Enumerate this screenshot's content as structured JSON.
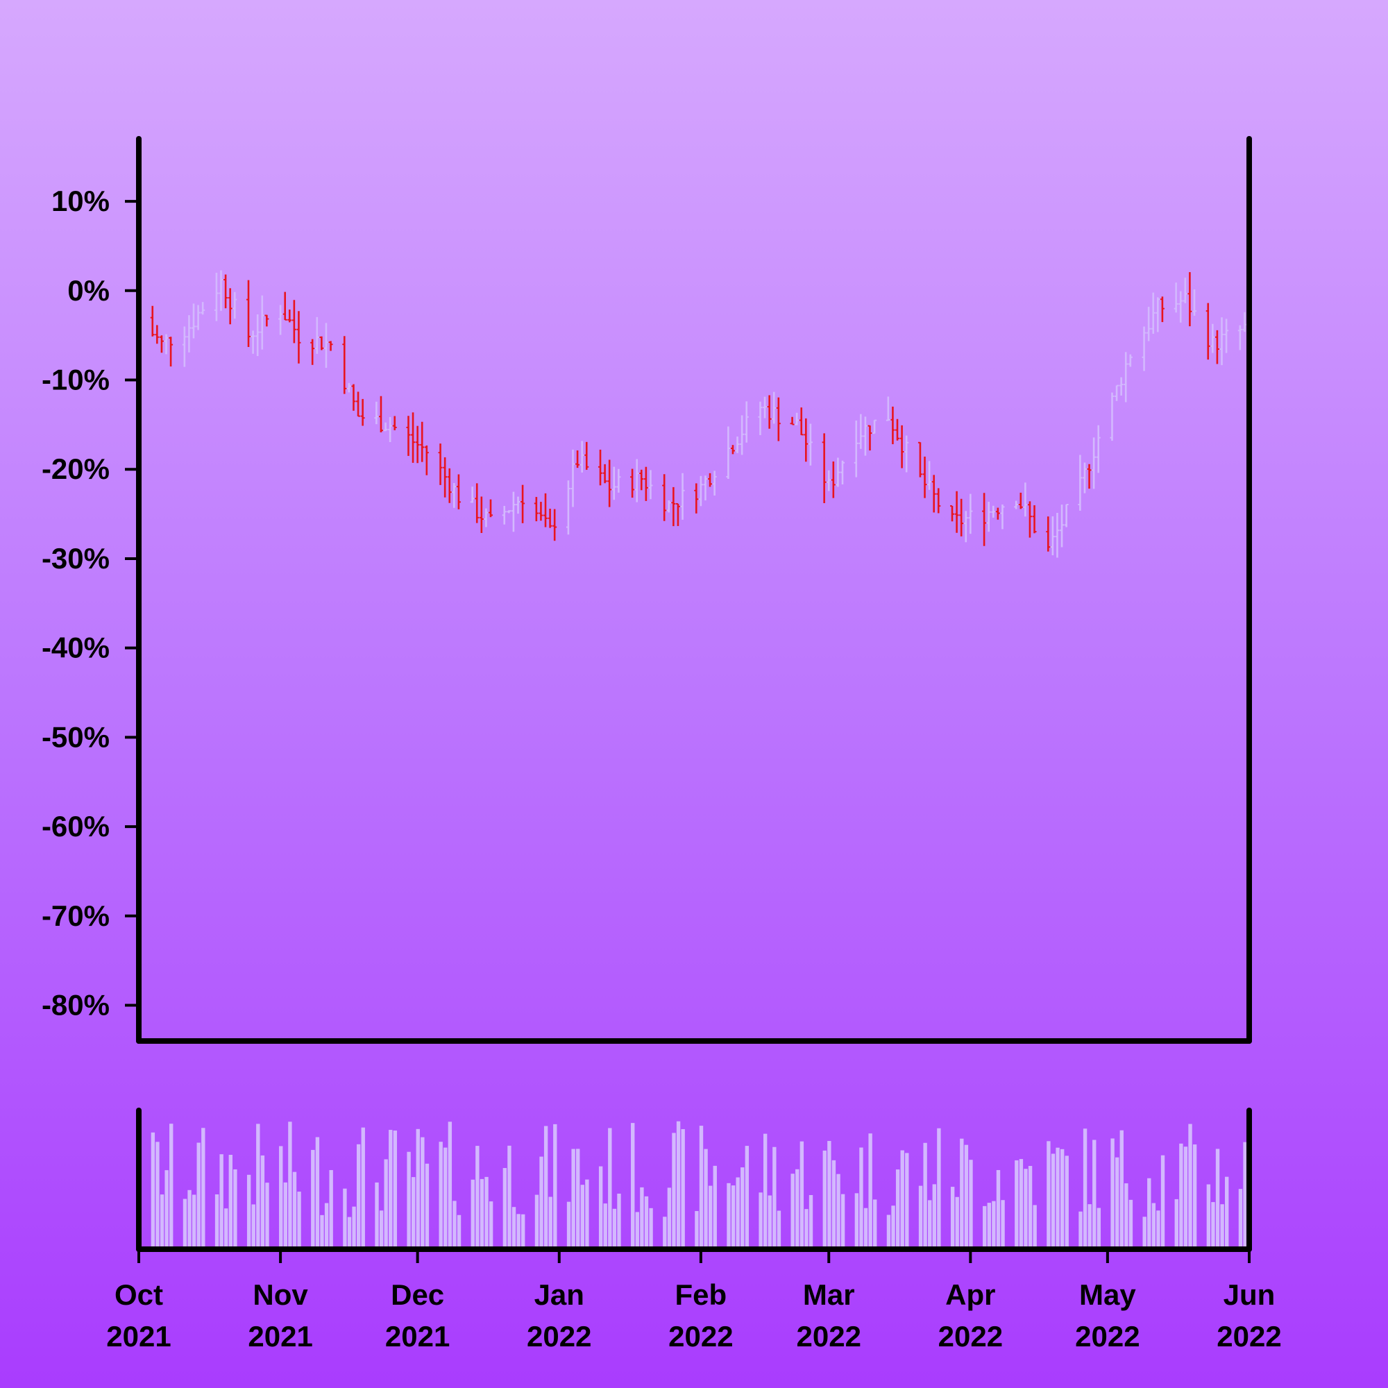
{
  "chart_data": [
    {
      "type": "ohlc",
      "title": "",
      "xlabel": "",
      "ylabel": "",
      "y_unit": "%",
      "ylim": [
        -84,
        17
      ],
      "yticks": [
        "10%",
        "0%",
        "-10%",
        "-20%",
        "-30%",
        "-40%",
        "-50%",
        "-60%",
        "-70%",
        "-80%"
      ],
      "ytick_values": [
        10,
        0,
        -10,
        -20,
        -30,
        -40,
        -50,
        -60,
        -70,
        -80
      ],
      "x_start": "2021-10-01",
      "x_end": "2022-06-01",
      "grid": false,
      "colors": {
        "up": "#d3b8fe",
        "down": "#e8141e",
        "volume": "#d3b8fe",
        "frame": "#000000"
      },
      "anchors": [
        [
          "2021-10-01",
          -3
        ],
        [
          "2021-10-06",
          -6
        ],
        [
          "2021-10-12",
          -4
        ],
        [
          "2021-10-19",
          1
        ],
        [
          "2021-10-25",
          -5
        ],
        [
          "2021-11-01",
          -2
        ],
        [
          "2021-11-05",
          -5
        ],
        [
          "2021-11-12",
          -6
        ],
        [
          "2021-11-18",
          -14
        ],
        [
          "2021-11-25",
          -15
        ],
        [
          "2021-12-03",
          -18
        ],
        [
          "2021-12-10",
          -23
        ],
        [
          "2021-12-17",
          -26
        ],
        [
          "2021-12-24",
          -23
        ],
        [
          "2021-12-30",
          -27
        ],
        [
          "2022-01-05",
          -19
        ],
        [
          "2022-01-12",
          -22
        ],
        [
          "2022-01-19",
          -21
        ],
        [
          "2022-01-25",
          -24
        ],
        [
          "2022-02-01",
          -22
        ],
        [
          "2022-02-08",
          -17
        ],
        [
          "2022-02-14",
          -13
        ],
        [
          "2022-02-22",
          -15
        ],
        [
          "2022-03-01",
          -22
        ],
        [
          "2022-03-07",
          -16
        ],
        [
          "2022-03-14",
          -14
        ],
        [
          "2022-03-21",
          -21
        ],
        [
          "2022-03-28",
          -26
        ],
        [
          "2022-04-04",
          -25
        ],
        [
          "2022-04-11",
          -23
        ],
        [
          "2022-04-18",
          -29
        ],
        [
          "2022-04-25",
          -22
        ],
        [
          "2022-04-30",
          -15
        ],
        [
          "2022-05-06",
          -7
        ],
        [
          "2022-05-12",
          -2
        ],
        [
          "2022-05-18",
          -1
        ],
        [
          "2022-05-24",
          -6
        ],
        [
          "2022-06-01",
          -4
        ]
      ],
      "range_pct": 2.6
    },
    {
      "type": "bar",
      "ylabel": "",
      "series": "volume",
      "xticks": [
        {
          "month": "Oct",
          "year": "2021"
        },
        {
          "month": "Nov",
          "year": "2021"
        },
        {
          "month": "Dec",
          "year": "2021"
        },
        {
          "month": "Jan",
          "year": "2022"
        },
        {
          "month": "Feb",
          "year": "2022"
        },
        {
          "month": "Mar",
          "year": "2022"
        },
        {
          "month": "Apr",
          "year": "2022"
        },
        {
          "month": "May",
          "year": "2022"
        },
        {
          "month": "Jun",
          "year": "2022"
        }
      ],
      "xtick_dates": [
        "2021-10-01",
        "2021-11-01",
        "2021-12-01",
        "2022-01-01",
        "2022-02-01",
        "2022-03-01",
        "2022-04-01",
        "2022-05-01",
        "2022-06-01"
      ]
    }
  ]
}
